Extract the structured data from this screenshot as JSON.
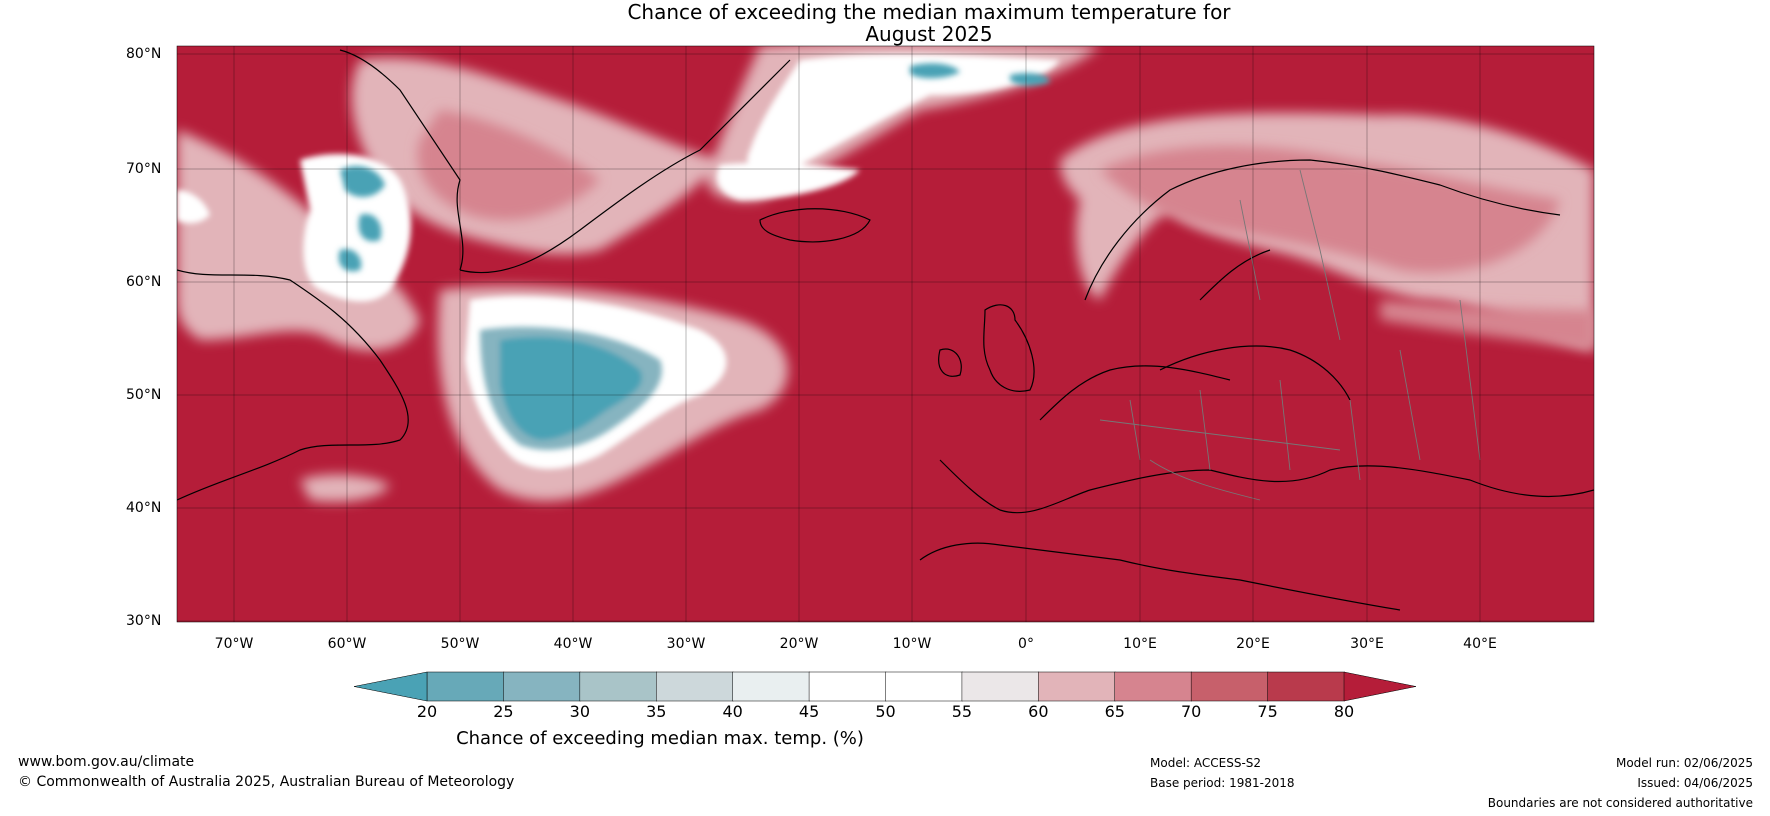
{
  "title_line1": "Chance of exceeding the median maximum temperature for",
  "title_line2": "August 2025",
  "lat_ticks": [
    "80°N",
    "70°N",
    "60°N",
    "50°N",
    "40°N",
    "30°N"
  ],
  "lon_ticks": [
    "70°W",
    "60°W",
    "50°W",
    "40°W",
    "30°W",
    "20°W",
    "10°W",
    "0°",
    "10°E",
    "20°E",
    "30°E",
    "40°E"
  ],
  "colorbar": {
    "labels": [
      "20",
      "25",
      "30",
      "35",
      "40",
      "45",
      "50",
      "55",
      "60",
      "65",
      "70",
      "75",
      "80"
    ],
    "colors": [
      "#4aa2b5",
      "#67a9b8",
      "#86b4c0",
      "#a9c4c8",
      "#cdd8db",
      "#e9eff0",
      "#ffffff",
      "#ffffff",
      "#ebe7e8",
      "#e2b4b9",
      "#d6848f",
      "#c7606b",
      "#b93a4c"
    ],
    "low_color": "#4aa2b5",
    "high_color": "#b51d39",
    "title": "Chance of exceeding median max. temp. (%)"
  },
  "map_colors": {
    "base": "#b51d39",
    "pink_light": "#e2b4b9",
    "pink_mid": "#d6848f",
    "white": "#ffffff",
    "blue": "#4aa2b5",
    "blue_light": "#86b4c0"
  },
  "footer": {
    "website": "www.bom.gov.au/climate",
    "copyright": "© Commonwealth of Australia 2025, Australian Bureau of Meteorology",
    "model": "Model: ACCESS-S2",
    "base_period": "Base period: 1981-2018",
    "model_run": "Model run: 02/06/2025",
    "issued": "Issued: 04/06/2025",
    "disclaimer": "Boundaries are not considered authoritative"
  }
}
